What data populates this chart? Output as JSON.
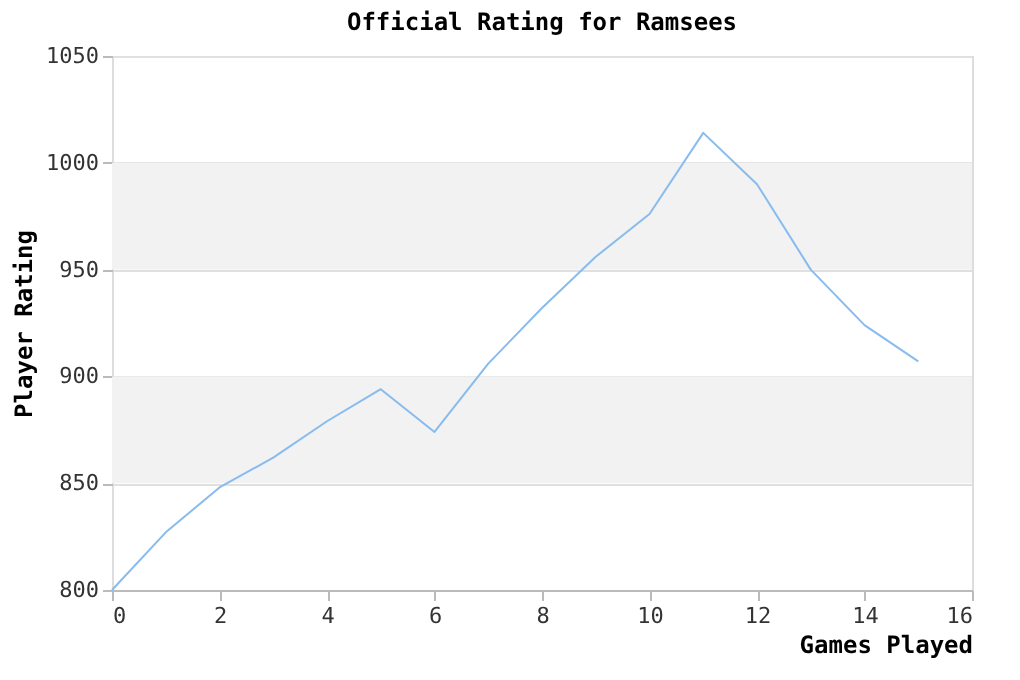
{
  "chart_data": {
    "type": "line",
    "title": "Official Rating for Ramsees",
    "xlabel": "Games Played",
    "ylabel": "Player Rating",
    "x": [
      0,
      1,
      2,
      3,
      4,
      5,
      6,
      7,
      8,
      9,
      10,
      11,
      12,
      13,
      14,
      15
    ],
    "series": [
      {
        "color": "#88bbee",
        "values": [
          800,
          827,
          848,
          862,
          879,
          894,
          874,
          906,
          932,
          956,
          976,
          1014,
          990,
          950,
          924,
          907
        ]
      }
    ],
    "xlim": [
      0,
      16
    ],
    "xticks": [
      0,
      2,
      4,
      6,
      8,
      10,
      12,
      14,
      16
    ],
    "ylim": [
      800,
      1050
    ],
    "yticks": [
      800,
      850,
      900,
      950,
      1000,
      1050
    ],
    "bands": [
      {
        "axis": "y",
        "from": 850,
        "to": 900,
        "color": "#f2f2f2"
      },
      {
        "axis": "y",
        "from": 950,
        "to": 1000,
        "color": "#f2f2f2"
      }
    ],
    "grid": "y",
    "marker": "none",
    "line_style": "solid"
  }
}
